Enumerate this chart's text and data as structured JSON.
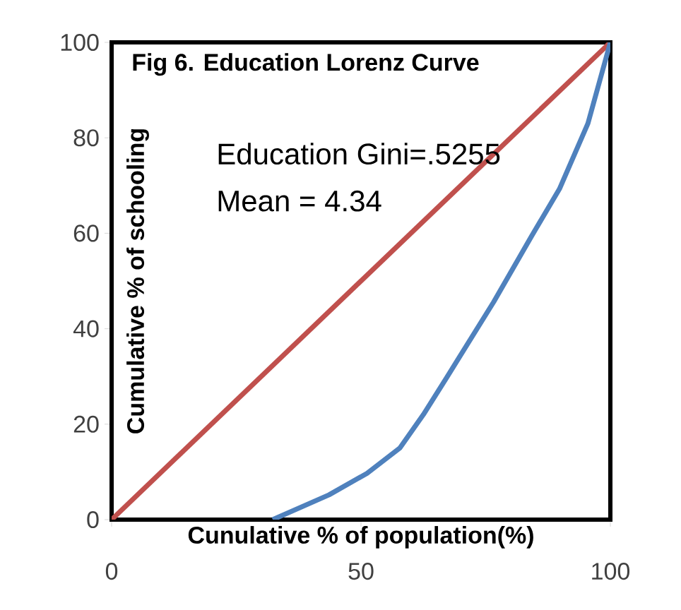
{
  "chart_data": {
    "type": "line",
    "title": "Fig  6. Education Lorenz Curve",
    "xlabel": "Cunulative %  of  population(%)",
    "ylabel": "Cumulative % of schooling",
    "annotations": [
      "Education Gini=.5255",
      "Mean = 4.34"
    ],
    "series": [
      {
        "color": "#c0504d",
        "x": [
          0,
          100
        ],
        "values": [
          0,
          100
        ]
      },
      {
        "color": "#4f81bd",
        "x": [
          32.3,
          43.6,
          51.2,
          57.8,
          62.5,
          67.2,
          76.6,
          84.2,
          89.8,
          95.5,
          100
        ],
        "values": [
          0,
          5.2,
          9.7,
          15,
          22,
          29.8,
          45.6,
          59.4,
          69.3,
          83,
          100
        ]
      }
    ],
    "xlim": [
      0,
      100
    ],
    "ylim": [
      0,
      100
    ],
    "xticks": [
      0,
      50,
      100
    ],
    "yticks": [
      0,
      20,
      40,
      60,
      80,
      100
    ],
    "grid": false,
    "marker": "none",
    "line_style": "solid"
  }
}
